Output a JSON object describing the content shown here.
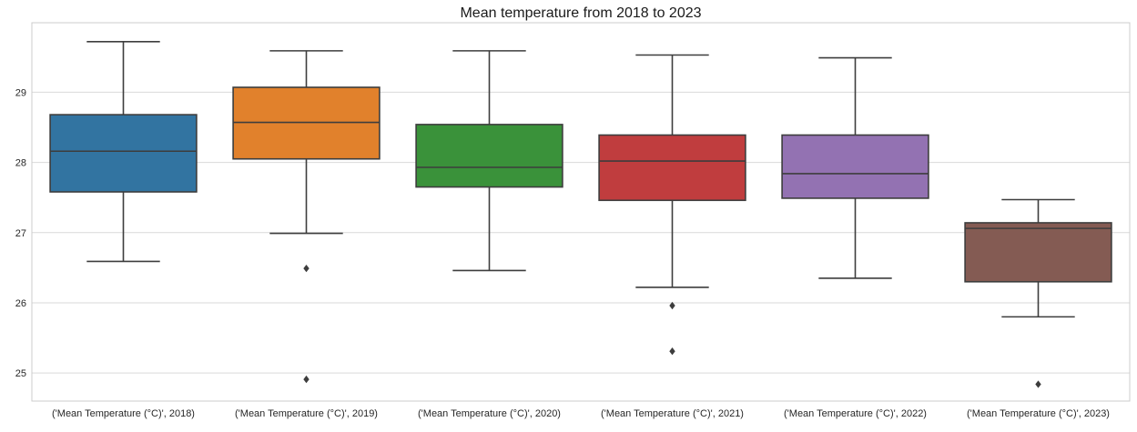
{
  "chart_data": {
    "type": "box",
    "title": "Mean temperature from 2018 to 2023",
    "xlabel": "",
    "ylabel": "",
    "ylim": [
      24.6,
      29.99
    ],
    "yticks": [
      "25",
      "26",
      "27",
      "28",
      "29"
    ],
    "grid": "horizontal",
    "categories": [
      "('Mean Temperature (°C)', 2018)",
      "('Mean Temperature (°C)', 2019)",
      "('Mean Temperature (°C)', 2020)",
      "('Mean Temperature (°C)', 2021)",
      "('Mean Temperature (°C)', 2022)",
      "('Mean Temperature (°C)', 2023)"
    ],
    "boxes": [
      {
        "whisker_low": 26.59,
        "q1": 27.58,
        "median": 28.16,
        "q3": 28.68,
        "whisker_high": 29.72,
        "outliers": [],
        "color": "#3274a1"
      },
      {
        "whisker_low": 26.99,
        "q1": 28.05,
        "median": 28.57,
        "q3": 29.07,
        "whisker_high": 29.59,
        "outliers": [
          26.49,
          24.91
        ],
        "color": "#e1812c"
      },
      {
        "whisker_low": 26.46,
        "q1": 27.65,
        "median": 27.93,
        "q3": 28.54,
        "whisker_high": 29.59,
        "outliers": [],
        "color": "#3a923a"
      },
      {
        "whisker_low": 26.22,
        "q1": 27.46,
        "median": 28.02,
        "q3": 28.39,
        "whisker_high": 29.53,
        "outliers": [
          25.96,
          25.31
        ],
        "color": "#c03d3e"
      },
      {
        "whisker_low": 26.35,
        "q1": 27.49,
        "median": 27.84,
        "q3": 28.39,
        "whisker_high": 29.49,
        "outliers": [],
        "color": "#9372b2"
      },
      {
        "whisker_low": 25.8,
        "q1": 26.3,
        "median": 27.06,
        "q3": 27.14,
        "whisker_high": 27.47,
        "outliers": [
          24.84
        ],
        "color": "#845b53"
      }
    ]
  }
}
